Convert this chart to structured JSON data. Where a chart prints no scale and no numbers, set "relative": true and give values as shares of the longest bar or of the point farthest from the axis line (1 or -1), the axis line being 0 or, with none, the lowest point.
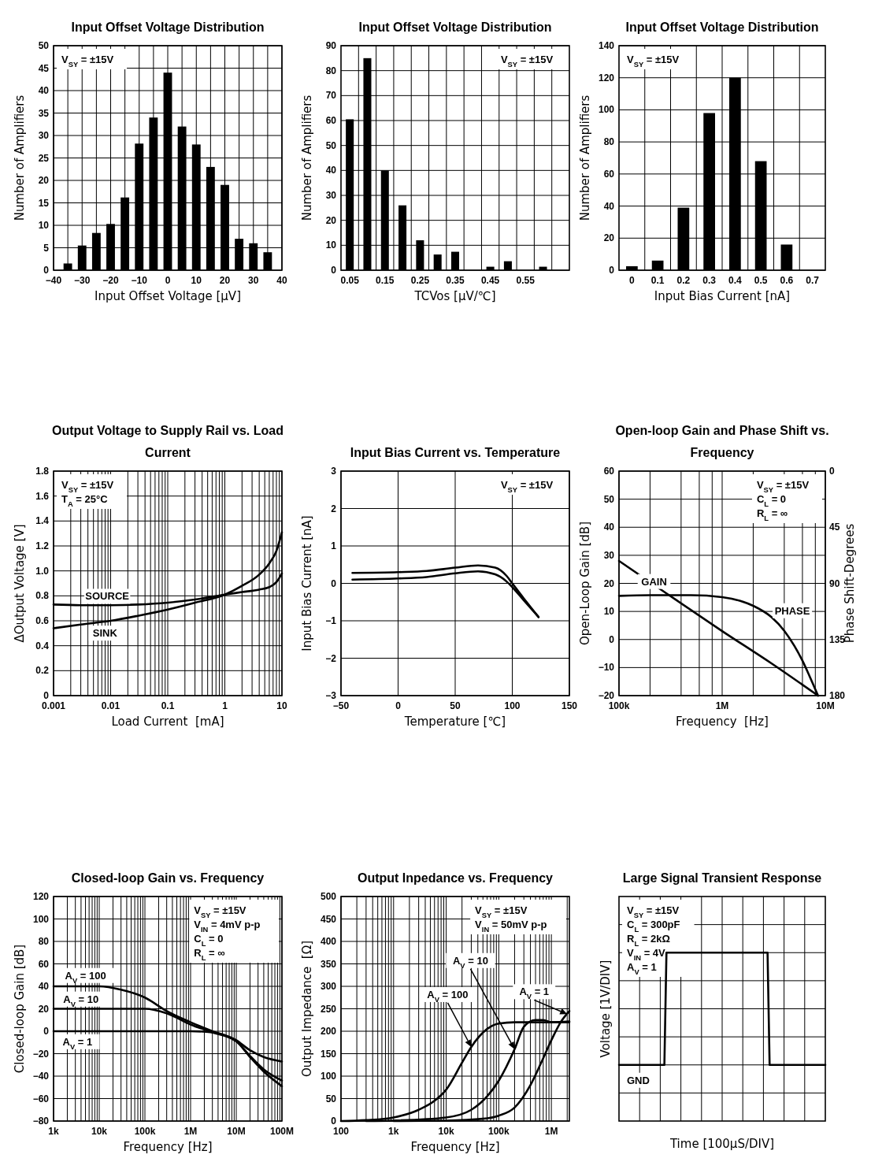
{
  "chart_data": [
    {
      "type": "bar",
      "title": "Input Offset Voltage Distribution",
      "xlabel": "Input Offset Voltage [µV]",
      "ylabel": "Number of Amplifiers",
      "x": [
        -35,
        -30,
        -25,
        -20,
        -15,
        -10,
        -5,
        0,
        5,
        10,
        15,
        20,
        25,
        30,
        35
      ],
      "values": [
        1.5,
        5.5,
        8.3,
        10.3,
        16.2,
        28.2,
        34,
        44,
        32,
        28,
        23,
        19,
        7,
        6,
        4
      ],
      "color": "#000000",
      "xlim": [
        -40,
        40
      ],
      "xticks": [
        -40,
        {
          "value": -35,
          "label": null
        },
        -30,
        {
          "value": -25,
          "label": null
        },
        -20,
        {
          "value": -15,
          "label": null
        },
        -10,
        {
          "value": -5,
          "label": null
        },
        0,
        {
          "value": 5,
          "label": null
        },
        10,
        {
          "value": 15,
          "label": null
        },
        20,
        {
          "value": 25,
          "label": null
        },
        30,
        {
          "value": 35,
          "label": null
        },
        40
      ],
      "ylim": [
        0,
        50
      ],
      "yticks": [
        0,
        5,
        10,
        15,
        20,
        25,
        30,
        35,
        40,
        45,
        50
      ],
      "grid": true,
      "annotations": [
        "V$_{SY}$ = ±15V"
      ]
    },
    {
      "type": "bar",
      "title": "Input Offset Voltage Distribution",
      "xlabel": "TCVos [µV/℃]",
      "ylabel": "Number of Amplifiers",
      "categories": [
        "0.05",
        null,
        "0.15",
        null,
        "0.25",
        null,
        "0.35",
        null,
        "0.45",
        null,
        "0.55",
        null,
        null
      ],
      "values": [
        60.5,
        85,
        40,
        26,
        12,
        6.3,
        7.4,
        null,
        1.4,
        3.6,
        null,
        1.4,
        null
      ],
      "color": "#000000",
      "ylim": [
        0,
        90
      ],
      "yticks": [
        0,
        10,
        20,
        30,
        40,
        50,
        60,
        70,
        80,
        90
      ],
      "grid": true,
      "annotations": [
        "V$_{SY}$ = ±15V"
      ]
    },
    {
      "type": "bar",
      "title": "Input Offset Voltage Distribution",
      "xlabel": "Input Bias Current [nA]",
      "ylabel": "Number of Amplifiers",
      "categories": [
        "0",
        "0.1",
        "0.2",
        "0.3",
        "0.4",
        "0.5",
        "0.6",
        "0.7"
      ],
      "values": [
        2.5,
        6,
        39,
        98,
        120,
        68,
        16,
        null
      ],
      "color": "#000000",
      "ylim": [
        0,
        140
      ],
      "yticks": [
        0,
        20,
        40,
        60,
        80,
        100,
        120,
        140
      ],
      "grid": true,
      "annotations": [
        "V$_{SY}$ = ±15V"
      ]
    },
    {
      "type": "line",
      "title": "Output Voltage to Supply Rail vs. Load Current",
      "xlabel": "Load Current  [mA]",
      "ylabel": "ΔOutput Voltage [V]",
      "log": "x",
      "xlim": [
        0.001,
        10
      ],
      "xticks": [
        0.001,
        {
          "value": 0.002,
          "label": null
        },
        {
          "value": 0.003,
          "label": null
        },
        {
          "value": 0.004,
          "label": null
        },
        {
          "value": 0.005,
          "label": null
        },
        {
          "value": 0.006,
          "label": null
        },
        {
          "value": 0.007,
          "label": null
        },
        {
          "value": 0.008,
          "label": null
        },
        {
          "value": 0.009,
          "label": null
        },
        0.01,
        {
          "value": 0.02,
          "label": null
        },
        {
          "value": 0.03,
          "label": null
        },
        {
          "value": 0.04,
          "label": null
        },
        {
          "value": 0.05,
          "label": null
        },
        {
          "value": 0.06,
          "label": null
        },
        {
          "value": 0.07,
          "label": null
        },
        {
          "value": 0.08,
          "label": null
        },
        {
          "value": 0.09,
          "label": null
        },
        0.1,
        {
          "value": 0.2,
          "label": null
        },
        {
          "value": 0.3,
          "label": null
        },
        {
          "value": 0.4,
          "label": null
        },
        {
          "value": 0.5,
          "label": null
        },
        {
          "value": 0.6,
          "label": null
        },
        {
          "value": 0.7,
          "label": null
        },
        {
          "value": 0.8,
          "label": null
        },
        {
          "value": 0.9,
          "label": null
        },
        1,
        {
          "value": 2,
          "label": null
        },
        {
          "value": 3,
          "label": null
        },
        {
          "value": 4,
          "label": null
        },
        {
          "value": 5,
          "label": null
        },
        {
          "value": 6,
          "label": null
        },
        {
          "value": 7,
          "label": null
        },
        {
          "value": 8,
          "label": null
        },
        {
          "value": 9,
          "label": null
        },
        10
      ],
      "ylim": [
        0,
        1.8
      ],
      "yticks": [
        0,
        0.2,
        0.4,
        0.6,
        0.8,
        {
          "value": 1,
          "label": "1.0"
        },
        1.2,
        1.4,
        1.6,
        1.8
      ],
      "grid": true,
      "series": [
        {
          "name": "SOURCE",
          "color": "#000000",
          "x": [
            0.001,
            0.003,
            0.01,
            0.03,
            0.1,
            0.3,
            1,
            2,
            4,
            6,
            8,
            10
          ],
          "values": [
            0.73,
            0.725,
            0.725,
            0.73,
            0.745,
            0.77,
            0.81,
            0.83,
            0.85,
            0.87,
            0.91,
            0.98
          ]
        },
        {
          "name": "SINK",
          "color": "#000000",
          "x": [
            0.001,
            0.003,
            0.01,
            0.03,
            0.1,
            0.3,
            1,
            2,
            4,
            6,
            8,
            10
          ],
          "values": [
            0.54,
            0.57,
            0.6,
            0.64,
            0.69,
            0.745,
            0.81,
            0.88,
            0.97,
            1.06,
            1.16,
            1.31
          ]
        }
      ],
      "annotations": [
        "V$_{SY}$ = ±15V",
        "T$_{A}$ = 25°C"
      ]
    },
    {
      "type": "line",
      "title": "Input Bias Current vs. Temperature",
      "xlabel": "Temperature [℃]",
      "ylabel": "Input Bias Current [nA]",
      "xlim": [
        -50,
        150
      ],
      "xticks": [
        -50,
        0,
        50,
        100,
        150
      ],
      "ylim": [
        -3,
        3
      ],
      "yticks": [
        -3,
        -2,
        -1,
        0,
        1,
        2,
        3
      ],
      "grid": true,
      "series": [
        {
          "color": "#000000",
          "x": [
            -40,
            0,
            25,
            50,
            70,
            85,
            95,
            100,
            110,
            123
          ],
          "values": [
            0.28,
            0.3,
            0.33,
            0.42,
            0.48,
            0.42,
            0.2,
            0,
            -0.4,
            -0.9
          ]
        },
        {
          "color": "#000000",
          "x": [
            -40,
            0,
            25,
            50,
            70,
            85,
            95,
            100,
            110,
            123
          ],
          "values": [
            0.1,
            0.13,
            0.17,
            0.27,
            0.32,
            0.24,
            0.05,
            -0.1,
            -0.45,
            -0.9
          ]
        }
      ],
      "annotations": [
        "V$_{SY}$ = ±15V"
      ]
    },
    {
      "type": "line",
      "title": "Open-loop Gain and Phase Shift vs. Frequency",
      "xlabel": "Frequency  [Hz]",
      "ylabel": "Open-Loop Gain [dB]",
      "y2label": "Phase Shift-Degrees",
      "log": "x",
      "xlim": [
        100000,
        10000000
      ],
      "xticks": [
        {
          "value": 100000,
          "label": "100k"
        },
        {
          "value": 200000,
          "label": null
        },
        {
          "value": 400000,
          "label": null
        },
        {
          "value": 600000,
          "label": null
        },
        {
          "value": 800000,
          "label": null
        },
        {
          "value": 1000000,
          "label": "1M"
        },
        {
          "value": 2000000,
          "label": null
        },
        {
          "value": 4000000,
          "label": null
        },
        {
          "value": 6000000,
          "label": null
        },
        {
          "value": 8000000,
          "label": null
        },
        {
          "value": 10000000,
          "label": "10M"
        }
      ],
      "ylim": [
        -20,
        60
      ],
      "yticks": [
        -20,
        -10,
        0,
        10,
        20,
        30,
        40,
        50,
        60
      ],
      "y2lim": [
        180,
        0
      ],
      "y2ticks": [
        0,
        45,
        90,
        135,
        180
      ],
      "grid": true,
      "series": [
        {
          "name": "GAIN",
          "color": "#000000",
          "x": [
            100000,
            300000,
            1000000,
            3000000,
            8500000
          ],
          "values": [
            28,
            16,
            3,
            -8.5,
            -20
          ]
        },
        {
          "name": "PHASE",
          "color": "#000000",
          "axis": "y2",
          "x": [
            100000,
            200000,
            500000,
            1000000,
            1500000,
            2000000,
            3000000,
            4000000,
            5000000,
            6000000,
            7000000,
            8500000
          ],
          "values": [
            100,
            99.5,
            99.5,
            101,
            104,
            108,
            117,
            128,
            140,
            152,
            164,
            180
          ]
        }
      ],
      "annotations": [
        "V$_{SY}$ = ±15V",
        "C$_{L}$ = 0",
        "R$_{L}$ = ∞"
      ]
    },
    {
      "type": "line",
      "title": "Closed-loop Gain vs. Frequency",
      "xlabel": "Frequency [Hz]",
      "ylabel": "Closed-loop Gain [dB]",
      "log": "x",
      "xlim": [
        1000,
        100000000
      ],
      "xticks": [
        {
          "value": 1000,
          "label": "1k"
        },
        {
          "value": 2000,
          "label": null
        },
        {
          "value": 3000,
          "label": null
        },
        {
          "value": 4000,
          "label": null
        },
        {
          "value": 5000,
          "label": null
        },
        {
          "value": 6000,
          "label": null
        },
        {
          "value": 7000,
          "label": null
        },
        {
          "value": 8000,
          "label": null
        },
        {
          "value": 9000,
          "label": null
        },
        {
          "value": 10000,
          "label": "10k"
        },
        {
          "value": 20000,
          "label": null
        },
        {
          "value": 30000,
          "label": null
        },
        {
          "value": 40000,
          "label": null
        },
        {
          "value": 50000,
          "label": null
        },
        {
          "value": 60000,
          "label": null
        },
        {
          "value": 70000,
          "label": null
        },
        {
          "value": 80000,
          "label": null
        },
        {
          "value": 90000,
          "label": null
        },
        {
          "value": 100000,
          "label": "100k"
        },
        {
          "value": 200000,
          "label": null
        },
        {
          "value": 300000,
          "label": null
        },
        {
          "value": 400000,
          "label": null
        },
        {
          "value": 500000,
          "label": null
        },
        {
          "value": 600000,
          "label": null
        },
        {
          "value": 700000,
          "label": null
        },
        {
          "value": 800000,
          "label": null
        },
        {
          "value": 900000,
          "label": null
        },
        {
          "value": 1000000,
          "label": "1M"
        },
        {
          "value": 2000000,
          "label": null
        },
        {
          "value": 3000000,
          "label": null
        },
        {
          "value": 4000000,
          "label": null
        },
        {
          "value": 5000000,
          "label": null
        },
        {
          "value": 6000000,
          "label": null
        },
        {
          "value": 7000000,
          "label": null
        },
        {
          "value": 8000000,
          "label": null
        },
        {
          "value": 9000000,
          "label": null
        },
        {
          "value": 10000000,
          "label": "10M"
        },
        {
          "value": 20000000,
          "label": null
        },
        {
          "value": 30000000,
          "label": null
        },
        {
          "value": 40000000,
          "label": null
        },
        {
          "value": 50000000,
          "label": null
        },
        {
          "value": 60000000,
          "label": null
        },
        {
          "value": 70000000,
          "label": null
        },
        {
          "value": 80000000,
          "label": null
        },
        {
          "value": 90000000,
          "label": null
        },
        {
          "value": 100000000,
          "label": "100M"
        }
      ],
      "ylim": [
        -80,
        120
      ],
      "yticks": [
        -80,
        -60,
        -40,
        -20,
        0,
        20,
        40,
        60,
        80,
        100,
        120
      ],
      "grid": true,
      "series": [
        {
          "name": "A$_{V}$ = 100",
          "color": "#000000",
          "x": [
            1000,
            10000,
            30000,
            100000,
            300000,
            1000000,
            3000000,
            10000000,
            20000000,
            40000000,
            100000000
          ],
          "values": [
            40,
            40,
            37,
            30,
            18,
            8,
            0,
            -8,
            -17,
            -23,
            -27
          ]
        },
        {
          "name": "A$_{V}$ = 10",
          "color": "#000000",
          "x": [
            1000,
            100000,
            300000,
            1000000,
            3000000,
            10000000,
            20000000,
            40000000,
            100000000
          ],
          "values": [
            20,
            20,
            16,
            6,
            -1,
            -9,
            -22,
            -34,
            -44
          ]
        },
        {
          "name": "A$_{V}$ = 1",
          "color": "#000000",
          "x": [
            1000,
            1000000,
            3000000,
            10000000,
            20000000,
            40000000,
            100000000
          ],
          "values": [
            0,
            0,
            -1,
            -9,
            -23,
            -36,
            -49
          ]
        }
      ],
      "annotations": [
        "V$_{SY}$ = ±15V",
        "V$_{IN}$ = 4mV p-p",
        "C$_{L}$ = 0",
        "R$_{L}$ = ∞"
      ]
    },
    {
      "type": "line",
      "title": "Output Inpedance vs. Frequency",
      "xlabel": "Frequency [Hz]",
      "ylabel": "Output Impedance  [Ω]",
      "log": "x",
      "xlim": [
        100,
        2200000
      ],
      "xticks": [
        100,
        {
          "value": 200,
          "label": null
        },
        {
          "value": 300,
          "label": null
        },
        {
          "value": 400,
          "label": null
        },
        {
          "value": 500,
          "label": null
        },
        {
          "value": 600,
          "label": null
        },
        {
          "value": 700,
          "label": null
        },
        {
          "value": 800,
          "label": null
        },
        {
          "value": 900,
          "label": null
        },
        {
          "value": 1000,
          "label": "1k"
        },
        {
          "value": 2000,
          "label": null
        },
        {
          "value": 3000,
          "label": null
        },
        {
          "value": 4000,
          "label": null
        },
        {
          "value": 5000,
          "label": null
        },
        {
          "value": 6000,
          "label": null
        },
        {
          "value": 7000,
          "label": null
        },
        {
          "value": 8000,
          "label": null
        },
        {
          "value": 9000,
          "label": null
        },
        {
          "value": 10000,
          "label": "10k"
        },
        {
          "value": 20000,
          "label": null
        },
        {
          "value": 30000,
          "label": null
        },
        {
          "value": 40000,
          "label": null
        },
        {
          "value": 50000,
          "label": null
        },
        {
          "value": 60000,
          "label": null
        },
        {
          "value": 70000,
          "label": null
        },
        {
          "value": 80000,
          "label": null
        },
        {
          "value": 90000,
          "label": null
        },
        {
          "value": 100000,
          "label": "100k"
        },
        {
          "value": 200000,
          "label": null
        },
        {
          "value": 300000,
          "label": null
        },
        {
          "value": 400000,
          "label": null
        },
        {
          "value": 500000,
          "label": null
        },
        {
          "value": 600000,
          "label": null
        },
        {
          "value": 700000,
          "label": null
        },
        {
          "value": 800000,
          "label": null
        },
        {
          "value": 900000,
          "label": null
        },
        {
          "value": 1000000,
          "label": "1M"
        },
        {
          "value": 2000000,
          "label": null
        }
      ],
      "ylim": [
        0,
        500
      ],
      "yticks": [
        0,
        50,
        100,
        150,
        200,
        250,
        300,
        350,
        400,
        450,
        500
      ],
      "grid": true,
      "series": [
        {
          "color": "#000000",
          "x": [
            100,
            300,
            1000,
            3000,
            6000,
            10000,
            20000,
            30000,
            60000,
            100000,
            200000,
            500000,
            1000000,
            2200000
          ],
          "values": [
            0,
            2,
            8,
            25,
            45,
            70,
            130,
            165,
            205,
            217,
            220,
            220,
            220,
            220
          ]
        },
        {
          "color": "#000000",
          "x": [
            300,
            1000,
            10000,
            30000,
            60000,
            100000,
            200000,
            300000,
            500000,
            700000,
            1000000,
            2200000
          ],
          "values": [
            0,
            1,
            8,
            25,
            55,
            90,
            160,
            210,
            225,
            225,
            220,
            222
          ]
        },
        {
          "color": "#000000",
          "x": [
            1000,
            10000,
            50000,
            100000,
            200000,
            400000,
            700000,
            1000000,
            1500000,
            2200000
          ],
          "values": [
            0,
            1,
            5,
            12,
            30,
            80,
            140,
            180,
            220,
            245
          ]
        }
      ],
      "annotations": [
        "V$_{SY}$ = ±15V",
        "V$_{IN}$ = 50mV p-p",
        {
          "text": "A$_{V}$ = 100",
          "x": 30000,
          "y": 165
        },
        "A$_{V}$ = 10",
        {
          "text": "A$_{V}$ = 1",
          "x": 2000000,
          "y": 238
        }
      ]
    },
    {
      "type": "line",
      "title": "Large Signal Transient Response",
      "xlabel": "Time [100µS/DIV]",
      "ylabel": "Voltage [1V/DIV]",
      "relative": true,
      "grid": true,
      "categories": [
        null,
        null,
        null,
        null,
        null,
        null,
        null,
        null,
        null,
        null,
        null,
        null,
        null,
        null,
        null,
        null,
        null,
        null,
        null,
        null,
        null,
        null,
        null,
        null,
        null,
        null,
        null,
        null,
        null,
        null,
        null,
        null,
        null,
        null,
        null,
        null,
        null,
        null,
        null,
        null,
        null,
        null,
        null,
        null,
        null,
        null,
        null,
        null,
        null,
        null,
        null,
        null,
        null,
        null,
        null,
        null,
        null,
        null,
        null,
        null,
        null,
        null,
        null,
        null,
        null,
        null,
        null,
        null,
        null,
        null,
        null,
        null,
        null,
        null,
        null,
        null,
        null,
        null,
        null,
        null,
        null,
        null,
        null,
        null,
        null,
        null,
        null,
        null,
        null,
        null,
        null,
        null,
        null,
        null,
        null,
        null,
        null,
        null,
        null,
        null,
        null
      ],
      "values": [
        0,
        0,
        0,
        0,
        0,
        0,
        0,
        0,
        0,
        0,
        0,
        0,
        0,
        0,
        0,
        0,
        0,
        0,
        0,
        0,
        0,
        0,
        0,
        1,
        1,
        1,
        1,
        1,
        1,
        1,
        1,
        1,
        1,
        1,
        1,
        1,
        1,
        1,
        1,
        1,
        1,
        1,
        1,
        1,
        1,
        1,
        1,
        1,
        1,
        1,
        1,
        1,
        1,
        1,
        1,
        1,
        1,
        1,
        1,
        1,
        1,
        1,
        1,
        1,
        1,
        1,
        1,
        1,
        1,
        1,
        1,
        1,
        1,
        0,
        0,
        0,
        0,
        0,
        0,
        0,
        0,
        0,
        0,
        0,
        0,
        0,
        0,
        0,
        0,
        0,
        0,
        0,
        0,
        0,
        0,
        0,
        0,
        0,
        0,
        0,
        0
      ],
      "color": "#000000",
      "annotations": [
        "V$_{SY}$ = ±15V",
        "C$_{L}$ = 300pF",
        "R$_{L}$ = 2kΩ",
        "V$_{IN}$ = 4V",
        "A$_{V}$ = 1",
        {
          "text": "GND",
          "y": 0
        }
      ]
    }
  ]
}
